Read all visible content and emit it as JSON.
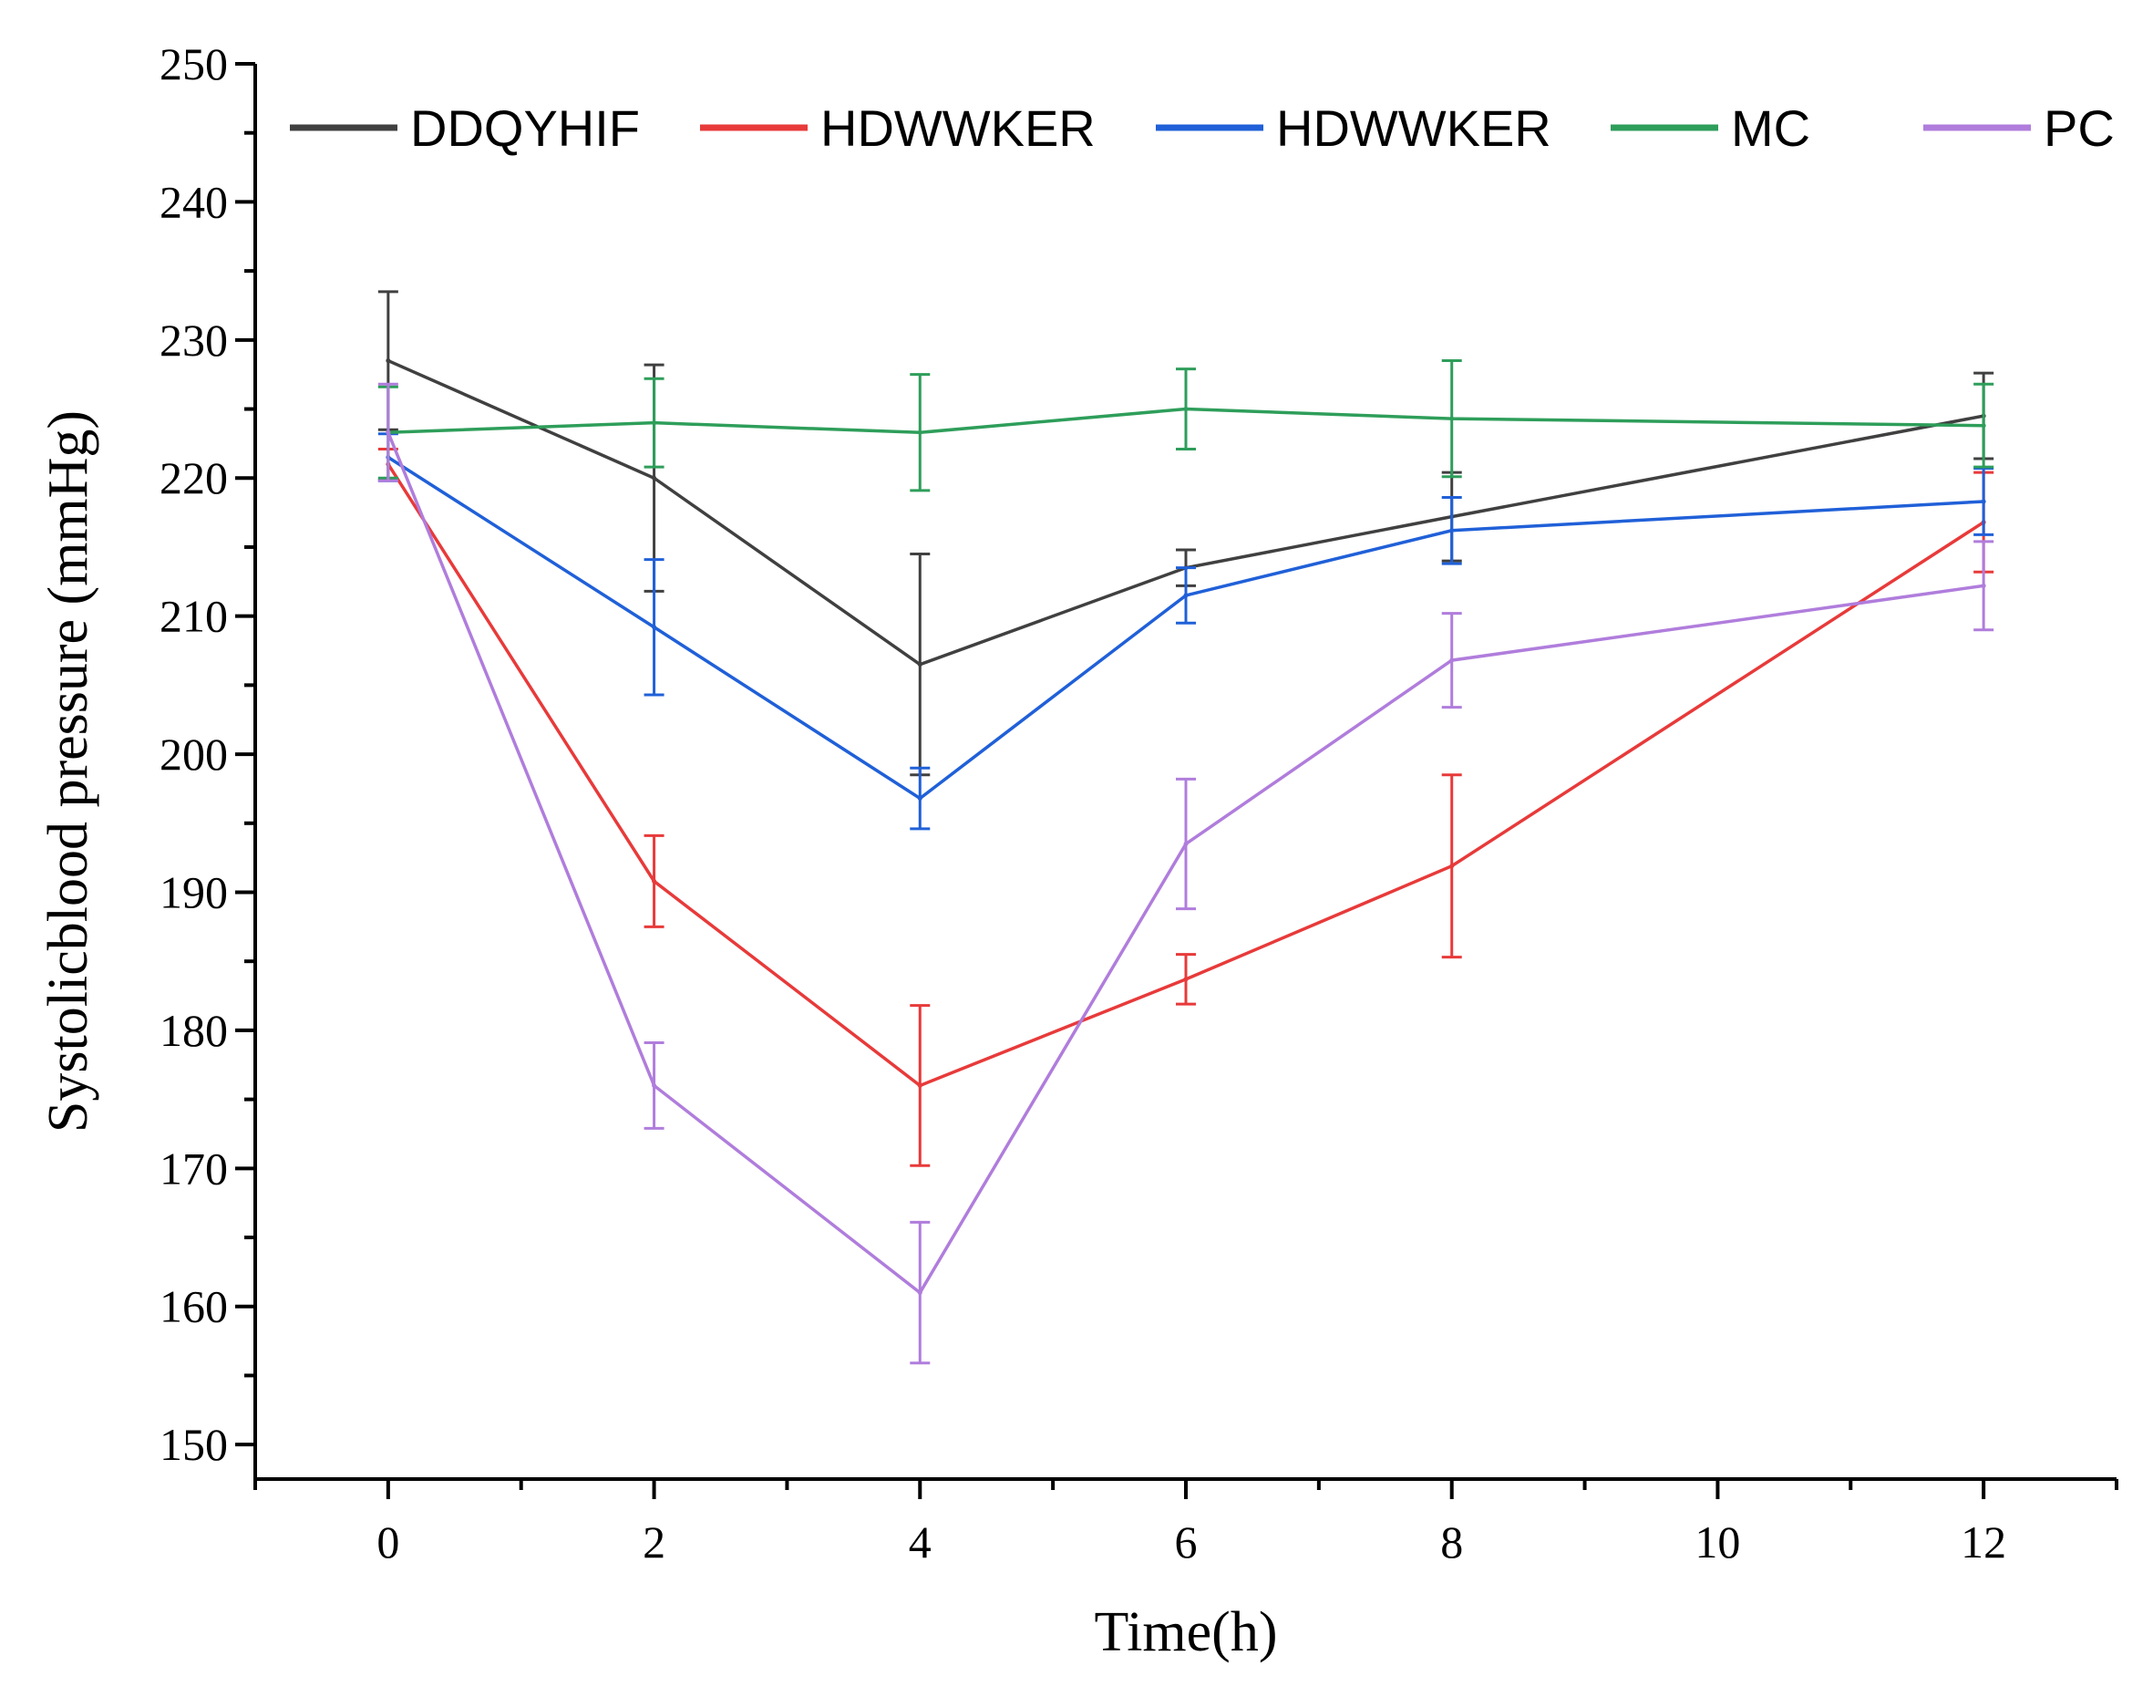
{
  "chart_data": {
    "type": "line",
    "title": "",
    "xlabel": "Time(h)",
    "ylabel": "Systolicblood pressure (mmHg)",
    "xlim": [
      -1,
      13
    ],
    "ylim": [
      147.5,
      250
    ],
    "xticks": [
      0,
      2,
      4,
      6,
      8,
      10,
      12
    ],
    "yticks": [
      150,
      160,
      170,
      180,
      190,
      200,
      210,
      220,
      230,
      240,
      250
    ],
    "legend_position": "top",
    "x": [
      0,
      2,
      4,
      6,
      8,
      12
    ],
    "series": [
      {
        "name": "DDQYHIF",
        "color": "#404040",
        "values": [
          228.5,
          220.0,
          206.5,
          213.5,
          217.2,
          224.5
        ],
        "errors": [
          5.0,
          8.2,
          8.0,
          1.3,
          3.2,
          3.1
        ]
      },
      {
        "name": "HDWWKER",
        "color": "#e83a3a",
        "values": [
          221.0,
          190.8,
          176.0,
          183.7,
          191.9,
          216.8
        ],
        "errors": [
          1.1,
          3.3,
          5.8,
          1.8,
          6.6,
          3.6
        ]
      },
      {
        "name": "HDWWKER",
        "color": "#2060d8",
        "values": [
          221.5,
          209.2,
          196.8,
          211.5,
          216.2,
          218.3
        ],
        "errors": [
          1.7,
          4.9,
          2.2,
          2.0,
          2.4,
          2.4
        ]
      },
      {
        "name": "MC",
        "color": "#2e9e5a",
        "values": [
          223.3,
          224.0,
          223.3,
          225.0,
          224.3,
          223.8
        ],
        "errors": [
          3.3,
          3.2,
          4.2,
          2.9,
          4.2,
          3.0
        ]
      },
      {
        "name": "PC",
        "color": "#b07ddc",
        "values": [
          223.3,
          176.0,
          161.0,
          193.5,
          206.8,
          212.2
        ],
        "errors": [
          3.5,
          3.1,
          5.1,
          4.7,
          3.4,
          3.2
        ]
      }
    ]
  }
}
